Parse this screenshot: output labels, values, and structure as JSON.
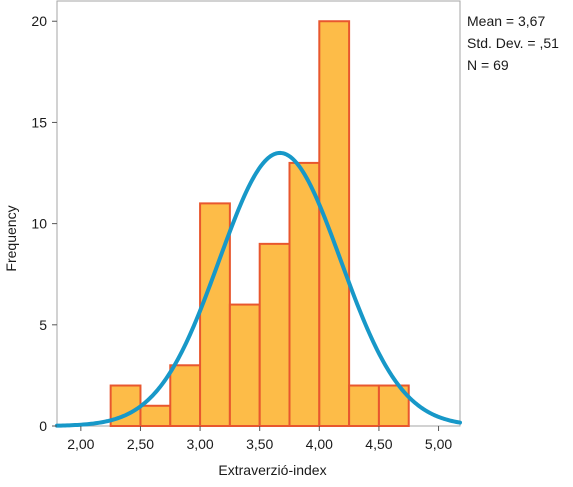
{
  "chart_data": {
    "type": "bar",
    "xlabel": "Extraverzió-index",
    "ylabel": "Frequency",
    "xlim": [
      1.8,
      5.18
    ],
    "ylim": [
      0,
      21
    ],
    "x_ticks": [
      2.0,
      2.5,
      3.0,
      3.5,
      4.0,
      4.5,
      5.0
    ],
    "x_tick_labels": [
      "2,00",
      "2,50",
      "3,00",
      "3,50",
      "4,00",
      "4,50",
      "5,00"
    ],
    "y_ticks": [
      0,
      5,
      10,
      15,
      20
    ],
    "y_tick_labels": [
      "0",
      "5",
      "10",
      "15",
      "20"
    ],
    "bins": [
      {
        "x0": 2.25,
        "x1": 2.5,
        "value": 2
      },
      {
        "x0": 2.5,
        "x1": 2.75,
        "value": 1
      },
      {
        "x0": 2.75,
        "x1": 3.0,
        "value": 3
      },
      {
        "x0": 3.0,
        "x1": 3.25,
        "value": 11
      },
      {
        "x0": 3.25,
        "x1": 3.5,
        "value": 6
      },
      {
        "x0": 3.5,
        "x1": 3.75,
        "value": 9
      },
      {
        "x0": 3.75,
        "x1": 4.0,
        "value": 13
      },
      {
        "x0": 4.0,
        "x1": 4.25,
        "value": 20
      },
      {
        "x0": 4.25,
        "x1": 4.5,
        "value": 2
      },
      {
        "x0": 4.5,
        "x1": 4.75,
        "value": 2
      }
    ],
    "normal_curve": {
      "mean": 3.67,
      "std_dev": 0.51,
      "n": 69,
      "bin_width": 0.25
    },
    "colors": {
      "bar_fill": "#FDBC48",
      "bar_stroke": "#E8572E",
      "curve": "#1798C8",
      "frame": "#a6a6a6"
    }
  },
  "stats": {
    "mean_label": "Mean = 3,67",
    "std_label": "Std. Dev. = ,51",
    "n_label": "N = 69"
  }
}
